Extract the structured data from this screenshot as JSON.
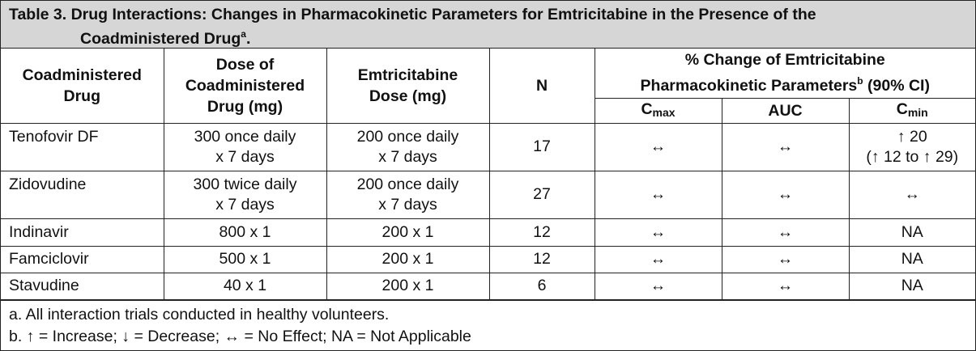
{
  "caption": {
    "line1": "Table 3. Drug Interactions: Changes in Pharmacokinetic Parameters for Emtricitabine in the Presence of the",
    "line2": "Coadministered Drug",
    "line2_sup": "a",
    "line2_end": "."
  },
  "headers": {
    "drug": [
      "Coadministered",
      "Drug"
    ],
    "dose": [
      "Dose of",
      "Coadministered",
      "Drug (mg)"
    ],
    "emtric_dose": [
      "Emtricitabine",
      "Dose (mg)"
    ],
    "n": "N",
    "pct_change": [
      "% Change of Emtricitabine",
      "Pharmacokinetic Parameters",
      "b",
      " (90% CI)"
    ],
    "cmax": {
      "base": "C",
      "sub": "max"
    },
    "auc": "AUC",
    "cmin": {
      "base": "C",
      "sub": "min"
    }
  },
  "rows": [
    {
      "drug": "Tenofovir DF",
      "dose": [
        "300 once daily",
        "x 7 days"
      ],
      "emtric": [
        "200 once daily",
        "x 7 days"
      ],
      "n": "17",
      "cmax": "↔",
      "auc": "↔",
      "cmin": [
        "↑ 20",
        "(↑ 12 to ↑ 29)"
      ]
    },
    {
      "drug": "Zidovudine",
      "dose": [
        "300 twice daily",
        "x 7 days"
      ],
      "emtric": [
        "200 once daily",
        "x 7 days"
      ],
      "n": "27",
      "cmax": "↔",
      "auc": "↔",
      "cmin": [
        "↔"
      ]
    },
    {
      "drug": "Indinavir",
      "dose": [
        "800 x 1"
      ],
      "emtric": [
        "200 x 1"
      ],
      "n": "12",
      "cmax": "↔",
      "auc": "↔",
      "cmin": [
        "NA"
      ]
    },
    {
      "drug": "Famciclovir",
      "dose": [
        "500 x 1"
      ],
      "emtric": [
        "200 x 1"
      ],
      "n": "12",
      "cmax": "↔",
      "auc": "↔",
      "cmin": [
        "NA"
      ]
    },
    {
      "drug": "Stavudine",
      "dose": [
        "40 x 1"
      ],
      "emtric": [
        "200 x 1"
      ],
      "n": "6",
      "cmax": "↔",
      "auc": "↔",
      "cmin": [
        "NA"
      ]
    }
  ],
  "footnotes": [
    "a. All interaction trials conducted in healthy volunteers.",
    "b. ↑ = Increase; ↓ = Decrease; ↔ = No Effect; NA = Not Applicable"
  ]
}
